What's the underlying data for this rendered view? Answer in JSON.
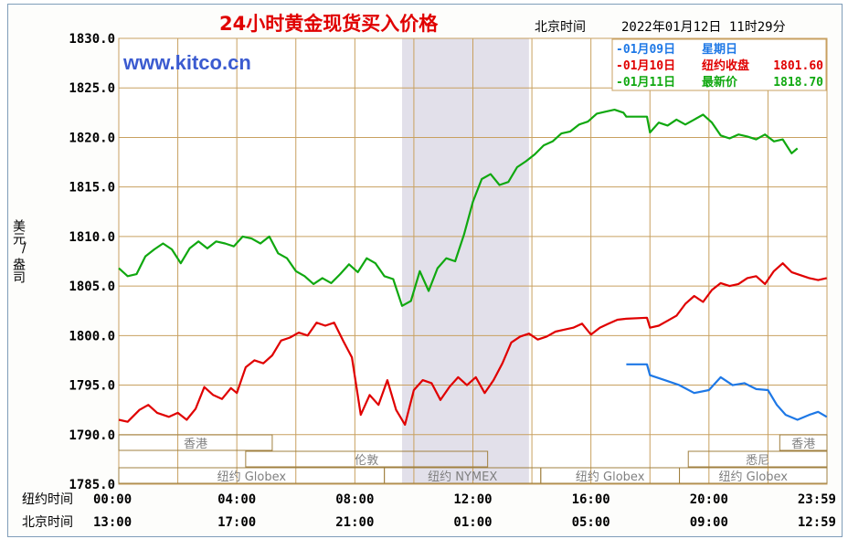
{
  "header": {
    "title": "24小时黄金现货买入价格",
    "beijing_label": "北京时间",
    "datetime": "2022年01月12日 11时29分"
  },
  "watermark": "www.kitco.cn",
  "yaxis": {
    "label_top": "美元",
    "label_sep": "/",
    "label_bottom": "盎司"
  },
  "xaxis": {
    "ny_row_label": "纽约时间",
    "bj_row_label": "北京时间",
    "ny_ticks": [
      "00:00",
      "04:00",
      "08:00",
      "12:00",
      "16:00",
      "20:00",
      "23:59"
    ],
    "bj_ticks": [
      "13:00",
      "17:00",
      "21:00",
      "01:00",
      "05:00",
      "09:00",
      "12:59"
    ]
  },
  "legend": [
    {
      "date": "01月09日",
      "label": "星期日",
      "value": "",
      "color": "#1e78e6"
    },
    {
      "date": "01月10日",
      "label": "纽约收盘",
      "value": "1801.60",
      "color": "#e00000"
    },
    {
      "date": "01月11日",
      "label": "最新价",
      "value": "1818.70",
      "color": "#10a810"
    }
  ],
  "sessions": [
    {
      "name": "香港",
      "row": 0
    },
    {
      "name": "香港",
      "row": 0
    },
    {
      "name": "伦敦",
      "row": 1
    },
    {
      "name": "悉尼",
      "row": 1
    },
    {
      "name": "纽约 Globex",
      "row": 2
    },
    {
      "name": "纽约 NYMEX",
      "row": 2
    },
    {
      "name": "纽约 Globex",
      "row": 2
    },
    {
      "name": "纽约 Globex",
      "row": 2
    }
  ],
  "chart_data": {
    "type": "line",
    "title": "24小时黄金现货买入价格",
    "xlabel": "纽约时间",
    "ylabel": "美元/盎司",
    "ylim": [
      1785,
      1830
    ],
    "yticks": [
      1785,
      1790,
      1795,
      1800,
      1805,
      1810,
      1815,
      1820,
      1825,
      1830
    ],
    "xlim_hours": [
      0,
      24
    ],
    "grid": true,
    "legend_position": "top-right",
    "shaded_period_hours": [
      9.6,
      13.9
    ],
    "series": [
      {
        "name": "01月09日",
        "color": "#1e78e6",
        "points": [
          [
            17.2,
            1797.1
          ],
          [
            17.9,
            1797.1
          ],
          [
            18.0,
            1796.0
          ],
          [
            18.5,
            1795.5
          ],
          [
            19.0,
            1795.0
          ],
          [
            19.5,
            1794.2
          ],
          [
            20.0,
            1794.5
          ],
          [
            20.4,
            1795.8
          ],
          [
            20.8,
            1795.0
          ],
          [
            21.2,
            1795.2
          ],
          [
            21.6,
            1794.6
          ],
          [
            22.0,
            1794.5
          ],
          [
            22.3,
            1793.0
          ],
          [
            22.6,
            1792.0
          ],
          [
            23.0,
            1791.5
          ],
          [
            23.4,
            1792.0
          ],
          [
            23.7,
            1792.3
          ],
          [
            23.99,
            1791.8
          ]
        ]
      },
      {
        "name": "01月10日",
        "color": "#e00000",
        "points": [
          [
            0.0,
            1791.5
          ],
          [
            0.3,
            1791.3
          ],
          [
            0.7,
            1792.5
          ],
          [
            1.0,
            1793.0
          ],
          [
            1.3,
            1792.2
          ],
          [
            1.7,
            1791.8
          ],
          [
            2.0,
            1792.2
          ],
          [
            2.3,
            1791.5
          ],
          [
            2.6,
            1792.6
          ],
          [
            2.9,
            1794.8
          ],
          [
            3.2,
            1794.0
          ],
          [
            3.5,
            1793.6
          ],
          [
            3.8,
            1794.7
          ],
          [
            4.0,
            1794.2
          ],
          [
            4.3,
            1796.8
          ],
          [
            4.6,
            1797.5
          ],
          [
            4.9,
            1797.2
          ],
          [
            5.2,
            1798.0
          ],
          [
            5.5,
            1799.5
          ],
          [
            5.8,
            1799.8
          ],
          [
            6.1,
            1800.3
          ],
          [
            6.4,
            1800.0
          ],
          [
            6.7,
            1801.3
          ],
          [
            7.0,
            1801.0
          ],
          [
            7.3,
            1801.3
          ],
          [
            7.6,
            1799.5
          ],
          [
            7.9,
            1797.8
          ],
          [
            8.2,
            1792.0
          ],
          [
            8.5,
            1794.0
          ],
          [
            8.8,
            1793.0
          ],
          [
            9.1,
            1795.5
          ],
          [
            9.4,
            1792.5
          ],
          [
            9.7,
            1791.0
          ],
          [
            10.0,
            1794.5
          ],
          [
            10.3,
            1795.5
          ],
          [
            10.6,
            1795.2
          ],
          [
            10.9,
            1793.5
          ],
          [
            11.2,
            1794.8
          ],
          [
            11.5,
            1795.8
          ],
          [
            11.8,
            1795.0
          ],
          [
            12.1,
            1795.8
          ],
          [
            12.4,
            1794.2
          ],
          [
            12.7,
            1795.5
          ],
          [
            13.0,
            1797.2
          ],
          [
            13.3,
            1799.3
          ],
          [
            13.6,
            1799.9
          ],
          [
            13.9,
            1800.2
          ],
          [
            14.2,
            1799.6
          ],
          [
            14.5,
            1799.9
          ],
          [
            14.8,
            1800.4
          ],
          [
            15.1,
            1800.6
          ],
          [
            15.4,
            1800.8
          ],
          [
            15.7,
            1801.2
          ],
          [
            16.0,
            1800.1
          ],
          [
            16.3,
            1800.8
          ],
          [
            16.6,
            1801.2
          ],
          [
            16.9,
            1801.6
          ],
          [
            17.2,
            1801.7
          ],
          [
            17.9,
            1801.8
          ],
          [
            18.0,
            1800.8
          ],
          [
            18.3,
            1801.0
          ],
          [
            18.6,
            1801.5
          ],
          [
            18.9,
            1802.0
          ],
          [
            19.2,
            1803.2
          ],
          [
            19.5,
            1804.0
          ],
          [
            19.8,
            1803.4
          ],
          [
            20.1,
            1804.6
          ],
          [
            20.4,
            1805.3
          ],
          [
            20.7,
            1805.0
          ],
          [
            21.0,
            1805.2
          ],
          [
            21.3,
            1805.8
          ],
          [
            21.6,
            1806.0
          ],
          [
            21.9,
            1805.2
          ],
          [
            22.2,
            1806.5
          ],
          [
            22.5,
            1807.3
          ],
          [
            22.8,
            1806.4
          ],
          [
            23.1,
            1806.1
          ],
          [
            23.4,
            1805.8
          ],
          [
            23.7,
            1805.6
          ],
          [
            23.99,
            1805.8
          ]
        ]
      },
      {
        "name": "01月11日",
        "color": "#10a810",
        "points": [
          [
            0.0,
            1806.8
          ],
          [
            0.3,
            1806.0
          ],
          [
            0.6,
            1806.2
          ],
          [
            0.9,
            1808.0
          ],
          [
            1.2,
            1808.7
          ],
          [
            1.5,
            1809.3
          ],
          [
            1.8,
            1808.7
          ],
          [
            2.1,
            1807.3
          ],
          [
            2.4,
            1808.8
          ],
          [
            2.7,
            1809.5
          ],
          [
            3.0,
            1808.8
          ],
          [
            3.3,
            1809.5
          ],
          [
            3.6,
            1809.3
          ],
          [
            3.9,
            1809.0
          ],
          [
            4.2,
            1810.0
          ],
          [
            4.5,
            1809.8
          ],
          [
            4.8,
            1809.3
          ],
          [
            5.1,
            1810.0
          ],
          [
            5.4,
            1808.3
          ],
          [
            5.7,
            1807.8
          ],
          [
            6.0,
            1806.5
          ],
          [
            6.3,
            1806.0
          ],
          [
            6.6,
            1805.2
          ],
          [
            6.9,
            1805.8
          ],
          [
            7.2,
            1805.3
          ],
          [
            7.5,
            1806.2
          ],
          [
            7.8,
            1807.2
          ],
          [
            8.1,
            1806.4
          ],
          [
            8.4,
            1807.8
          ],
          [
            8.7,
            1807.3
          ],
          [
            9.0,
            1806.0
          ],
          [
            9.3,
            1805.7
          ],
          [
            9.6,
            1803.0
          ],
          [
            9.9,
            1803.5
          ],
          [
            10.2,
            1806.5
          ],
          [
            10.5,
            1804.5
          ],
          [
            10.8,
            1806.8
          ],
          [
            11.1,
            1807.8
          ],
          [
            11.4,
            1807.5
          ],
          [
            11.7,
            1810.2
          ],
          [
            12.0,
            1813.5
          ],
          [
            12.3,
            1815.8
          ],
          [
            12.6,
            1816.3
          ],
          [
            12.9,
            1815.2
          ],
          [
            13.2,
            1815.5
          ],
          [
            13.5,
            1817.0
          ],
          [
            13.8,
            1817.6
          ],
          [
            14.1,
            1818.3
          ],
          [
            14.4,
            1819.2
          ],
          [
            14.7,
            1819.6
          ],
          [
            15.0,
            1820.4
          ],
          [
            15.3,
            1820.6
          ],
          [
            15.6,
            1821.3
          ],
          [
            15.9,
            1821.6
          ],
          [
            16.2,
            1822.4
          ],
          [
            16.5,
            1822.6
          ],
          [
            16.8,
            1822.8
          ],
          [
            17.1,
            1822.5
          ],
          [
            17.2,
            1822.1
          ],
          [
            17.9,
            1822.1
          ],
          [
            18.0,
            1820.5
          ],
          [
            18.3,
            1821.5
          ],
          [
            18.6,
            1821.2
          ],
          [
            18.9,
            1821.8
          ],
          [
            19.2,
            1821.3
          ],
          [
            19.5,
            1821.8
          ],
          [
            19.8,
            1822.3
          ],
          [
            20.1,
            1821.5
          ],
          [
            20.4,
            1820.2
          ],
          [
            20.7,
            1819.9
          ],
          [
            21.0,
            1820.3
          ],
          [
            21.3,
            1820.1
          ],
          [
            21.6,
            1819.8
          ],
          [
            21.9,
            1820.3
          ],
          [
            22.2,
            1819.6
          ],
          [
            22.5,
            1819.8
          ],
          [
            22.8,
            1818.4
          ],
          [
            23.0,
            1818.9
          ]
        ]
      }
    ]
  }
}
